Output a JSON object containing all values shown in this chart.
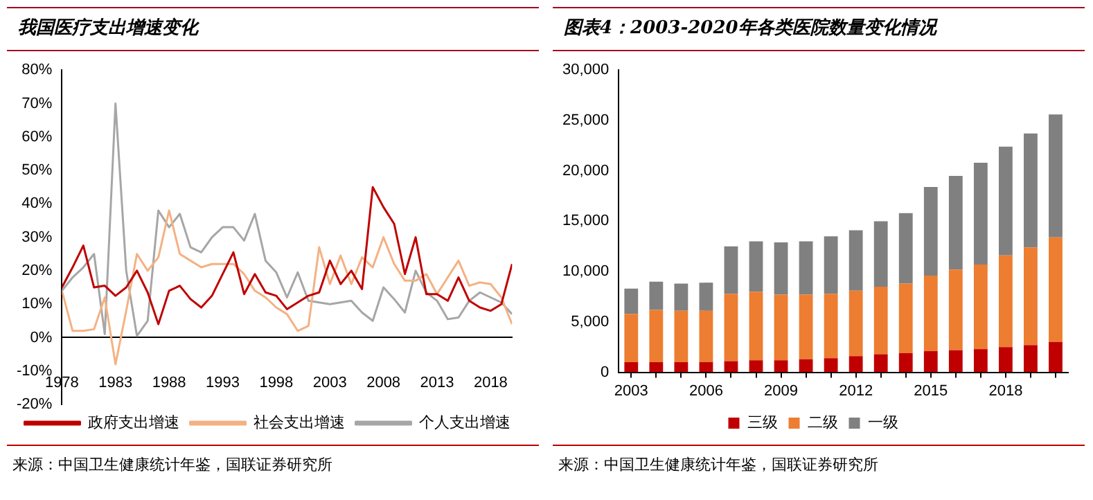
{
  "chart_data": [
    {
      "type": "line",
      "title": "我国医疗支出增速变化",
      "x": [
        1978,
        1979,
        1980,
        1981,
        1982,
        1983,
        1984,
        1985,
        1986,
        1987,
        1988,
        1989,
        1990,
        1991,
        1992,
        1993,
        1994,
        1995,
        1996,
        1997,
        1998,
        1999,
        2000,
        2001,
        2002,
        2003,
        2004,
        2005,
        2006,
        2007,
        2008,
        2009,
        2010,
        2011,
        2012,
        2013,
        2014,
        2015,
        2016,
        2017,
        2018,
        2019,
        2020
      ],
      "series": [
        {
          "name": "政府支出增速",
          "color": "#c00000",
          "values": [
            15,
            21,
            27.5,
            15,
            15.5,
            12.5,
            15,
            20,
            13.5,
            4,
            14,
            15.5,
            11.5,
            9,
            12.5,
            19,
            25.5,
            13,
            19,
            13.5,
            12.5,
            8.5,
            10.5,
            12.5,
            13.5,
            23,
            16,
            20,
            14.5,
            45,
            39,
            34,
            19,
            30,
            13,
            13,
            11,
            18,
            11,
            9,
            8,
            10,
            22
          ]
        },
        {
          "name": "社会支出增速",
          "color": "#f4b183",
          "values": [
            14,
            2,
            2,
            2.5,
            12,
            -8,
            8,
            25,
            20,
            24,
            38,
            25,
            23,
            21,
            22,
            22,
            22,
            19,
            14,
            12,
            9,
            7,
            2,
            3.5,
            27,
            16,
            24.5,
            16,
            24,
            21,
            30,
            22,
            17,
            17,
            19,
            13,
            18,
            23,
            15.5,
            16.5,
            16,
            12,
            4
          ]
        },
        {
          "name": "个人支出增速",
          "color": "#a6a6a6",
          "values": [
            14,
            18,
            21,
            25,
            1,
            70,
            20,
            0.5,
            5,
            38,
            33,
            37,
            27,
            25.5,
            30,
            33,
            33,
            29,
            37,
            23,
            19.5,
            12,
            19.5,
            11,
            10.5,
            10,
            10.5,
            11,
            7.5,
            5,
            15,
            11.5,
            7.5,
            20,
            13.5,
            11,
            5.5,
            6,
            11,
            13.5,
            12,
            10.5,
            7
          ]
        }
      ],
      "xlim": [
        1978,
        2020
      ],
      "xticks": [
        1978,
        1983,
        1988,
        1993,
        1998,
        2003,
        2008,
        2013,
        2018
      ],
      "ylim": [
        -20,
        80
      ],
      "yticks": [
        {
          "value": -20,
          "label": "-20%"
        },
        {
          "value": -10,
          "label": "-10%"
        },
        {
          "value": 0,
          "label": "0%"
        },
        {
          "value": 10,
          "label": "10%"
        },
        {
          "value": 20,
          "label": "20%"
        },
        {
          "value": 30,
          "label": "30%"
        },
        {
          "value": 40,
          "label": "40%"
        },
        {
          "value": 50,
          "label": "50%"
        },
        {
          "value": 60,
          "label": "60%"
        },
        {
          "value": 70,
          "label": "70%"
        },
        {
          "value": 80,
          "label": "80%"
        }
      ],
      "grid": false,
      "legend": "bottom",
      "marker": "none",
      "line_style": "solid",
      "annotations": [
        "来源：中国卫生健康统计年鉴，国联证券研究所"
      ]
    },
    {
      "type": "bar",
      "stacked": true,
      "title": "图表4：2003-2020年各类医院数量变化情况",
      "categories": [
        "2003",
        null,
        null,
        "2006",
        null,
        null,
        "2009",
        null,
        null,
        "2012",
        null,
        null,
        "2015",
        null,
        null,
        "2018",
        null,
        null
      ],
      "series": [
        {
          "name": "三级",
          "color": "#c00000",
          "values": [
            1000,
            1000,
            1000,
            1000,
            1100,
            1200,
            1200,
            1300,
            1400,
            1600,
            1800,
            1900,
            2100,
            2200,
            2300,
            2500,
            2700,
            3000
          ]
        },
        {
          "name": "二级",
          "color": "#ed7d31",
          "values": [
            4800,
            5200,
            5100,
            5100,
            6700,
            6800,
            6500,
            6400,
            6400,
            6500,
            6700,
            6900,
            7500,
            8000,
            8400,
            9100,
            9700,
            10400
          ]
        },
        {
          "name": "一级",
          "color": "#808080",
          "values": [
            2500,
            2800,
            2700,
            2800,
            4700,
            5000,
            5200,
            5300,
            5700,
            6000,
            6500,
            7000,
            8800,
            9300,
            10100,
            10800,
            11300,
            12200
          ]
        }
      ],
      "ylim": [
        0,
        30000
      ],
      "yticks": [
        {
          "value": 0,
          "label": "0"
        },
        {
          "value": 5000,
          "label": "5,000"
        },
        {
          "value": 10000,
          "label": "10,000"
        },
        {
          "value": 15000,
          "label": "15,000"
        },
        {
          "value": 20000,
          "label": "20,000"
        },
        {
          "value": 25000,
          "label": "25,000"
        },
        {
          "value": 30000,
          "label": "30,000"
        }
      ],
      "grid": false,
      "legend": "bottom",
      "annotations": [
        "来源：中国卫生健康统计年鉴，国联证券研究所"
      ]
    }
  ]
}
